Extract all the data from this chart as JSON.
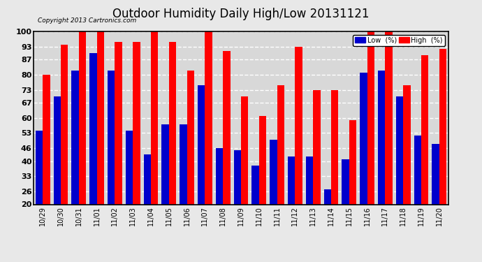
{
  "title": "Outdoor Humidity Daily High/Low 20131121",
  "copyright": "Copyright 2013 Cartronics.com",
  "labels": [
    "10/29",
    "10/30",
    "10/31",
    "11/01",
    "11/02",
    "11/03",
    "11/04",
    "11/05",
    "11/06",
    "11/07",
    "11/08",
    "11/09",
    "11/10",
    "11/11",
    "11/12",
    "11/13",
    "11/14",
    "11/15",
    "11/16",
    "11/17",
    "11/18",
    "11/19",
    "11/20"
  ],
  "high": [
    80,
    94,
    100,
    100,
    95,
    95,
    100,
    95,
    82,
    100,
    91,
    70,
    61,
    75,
    93,
    73,
    73,
    59,
    100,
    100,
    75,
    89,
    92
  ],
  "low": [
    54,
    70,
    82,
    90,
    82,
    54,
    43,
    57,
    57,
    75,
    46,
    45,
    38,
    50,
    42,
    42,
    27,
    41,
    81,
    82,
    70,
    52,
    48
  ],
  "bg_color": "#e8e8e8",
  "plot_bg_color": "#d8d8d8",
  "bar_high_color": "#ff0000",
  "bar_low_color": "#0000cc",
  "grid_color": "#ffffff",
  "ylim": [
    20,
    100
  ],
  "yticks": [
    20,
    26,
    33,
    40,
    46,
    53,
    60,
    67,
    73,
    80,
    87,
    93,
    100
  ],
  "title_fontsize": 12,
  "legend_low_label": "Low  (%)",
  "legend_high_label": "High  (%)"
}
